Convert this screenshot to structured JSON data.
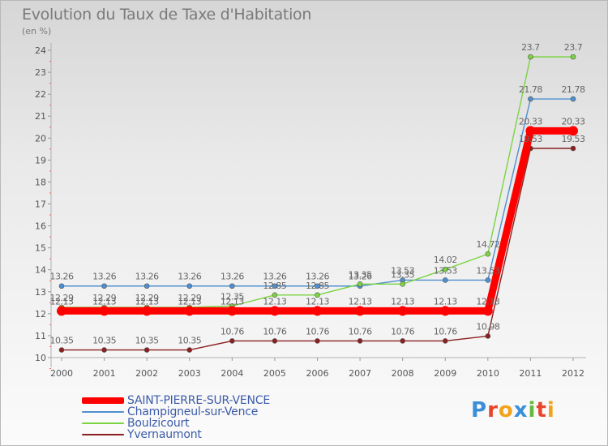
{
  "chart_data": {
    "type": "line",
    "title": "Evolution du Taux de Taxe d'Habitation",
    "ylabel": "(en %)",
    "ylim": [
      10,
      24
    ],
    "grid": false,
    "legend_placement": "bottom-left",
    "x": [
      "2000",
      "2001",
      "2002",
      "2003",
      "2004",
      "2005",
      "2006",
      "2007",
      "2008",
      "2009",
      "2010",
      "2011",
      "2012"
    ],
    "y_ticks": [
      "10",
      "11",
      "12",
      "13",
      "14",
      "15",
      "16",
      "17",
      "18",
      "19",
      "20",
      "21",
      "22",
      "23",
      "24"
    ],
    "series": [
      {
        "name": "SAINT-PIERRE-SUR-VENCE",
        "color": "#ff0000",
        "values": [
          12.13,
          12.13,
          12.13,
          12.13,
          12.13,
          12.13,
          12.13,
          12.13,
          12.13,
          12.13,
          12.13,
          20.33,
          20.33
        ],
        "labels": [
          "12.13",
          "12.13",
          "12.13",
          "12.13",
          "12.13",
          "12.13",
          "12.13",
          "12.13",
          "12.13",
          "12.13",
          "12.13",
          "20.33",
          "20.33"
        ]
      },
      {
        "name": "Champigneul-sur-Vence",
        "color": "#4f8fd0",
        "values": [
          13.26,
          13.26,
          13.26,
          13.26,
          13.26,
          13.26,
          13.26,
          13.26,
          13.53,
          13.53,
          13.53,
          21.78,
          21.78
        ],
        "labels": [
          "13.26",
          "13.26",
          "13.26",
          "13.26",
          "13.26",
          "13.26",
          "13.26",
          "13.26",
          "13.53",
          "13.53",
          "13.53",
          "21.78",
          "21.78"
        ]
      },
      {
        "name": "Boulzicourt",
        "color": "#7bd442",
        "values": [
          12.29,
          12.29,
          12.29,
          12.29,
          12.35,
          12.85,
          12.85,
          13.35,
          13.35,
          14.02,
          14.72,
          23.7,
          23.7
        ],
        "labels": [
          "12.29",
          "12.29",
          "12.29",
          "12.29",
          "12.35",
          "12.85",
          "12.85",
          "13.35",
          "13.35",
          "14.02",
          "14.72",
          "23.7",
          "23.7"
        ]
      },
      {
        "name": "Yvernaumont",
        "color": "#8b2020",
        "values": [
          10.35,
          10.35,
          10.35,
          10.35,
          10.76,
          10.76,
          10.76,
          10.76,
          10.76,
          10.76,
          10.98,
          19.53,
          19.53
        ],
        "labels": [
          "10.35",
          "10.35",
          "10.35",
          "10.35",
          "10.76",
          "10.76",
          "10.76",
          "10.76",
          "10.76",
          "10.76",
          "10.98",
          "19.53",
          "19.53"
        ]
      }
    ]
  },
  "logo": {
    "letters": [
      "P",
      "r",
      "o",
      "x",
      "i",
      "t",
      "i"
    ],
    "colors": [
      "#3a8fd8",
      "#e8462c",
      "#f2a31b",
      "#3a8fd8",
      "#64b83c",
      "#e8462c",
      "#f2a31b"
    ]
  }
}
